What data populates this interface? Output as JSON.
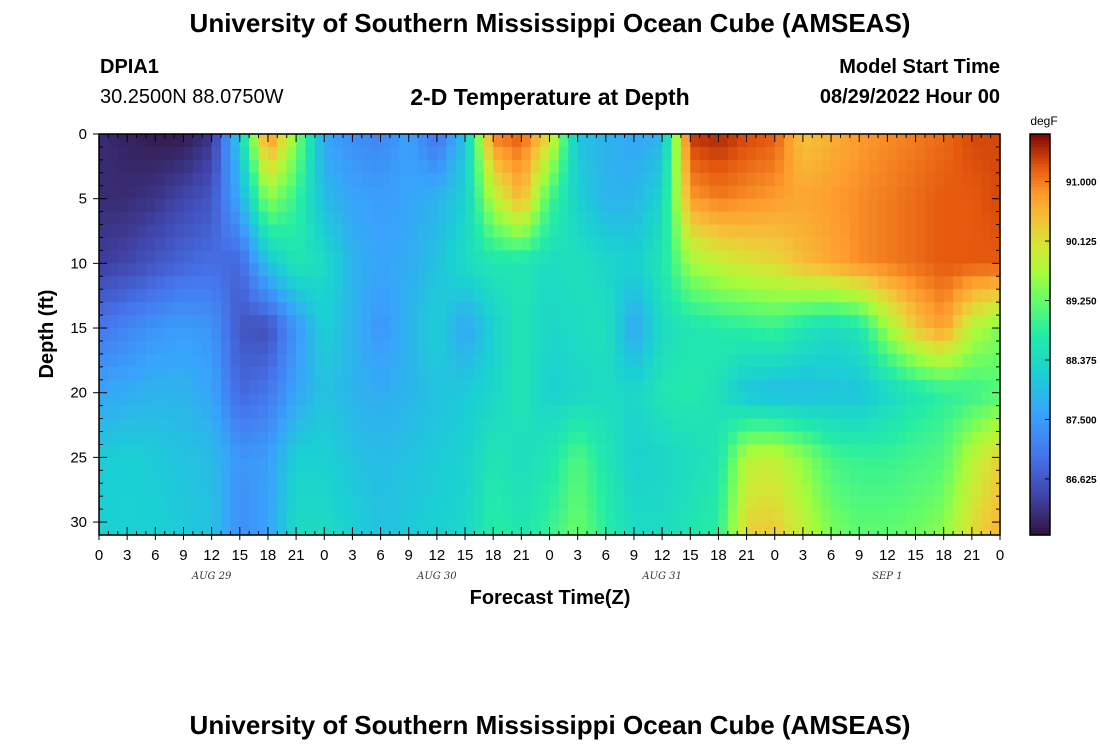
{
  "header": {
    "title": "University of Southern Mississippi Ocean Cube (AMSEAS)",
    "station_id": "DPIA1",
    "coordinates": "30.2500N  88.0750W",
    "plot_title": "2-D Temperature at Depth",
    "model_start_label": "Model Start Time",
    "model_start_value": "08/29/2022 Hour 00"
  },
  "footer": {
    "title": "University of Southern Mississippi Ocean Cube (AMSEAS)"
  },
  "chart_data": {
    "type": "heatmap",
    "title": "2-D Temperature at Depth",
    "xlabel": "Forecast Time(Z)",
    "ylabel": "Depth (ft)",
    "x_hours_range": [
      0,
      96
    ],
    "y_range": [
      0,
      31
    ],
    "x_tick_labels": [
      "0",
      "3",
      "6",
      "9",
      "12",
      "15",
      "18",
      "21",
      "0",
      "3",
      "6",
      "9",
      "12",
      "15",
      "18",
      "21",
      "0",
      "3",
      "6",
      "9",
      "12",
      "15",
      "18",
      "21",
      "0",
      "3",
      "6",
      "9",
      "12",
      "15",
      "18",
      "21",
      "0"
    ],
    "y_tick_values": [
      0,
      5,
      10,
      15,
      20,
      25,
      30
    ],
    "y_tick_labels": [
      "0",
      "5",
      "10",
      "15",
      "20",
      "25",
      "30"
    ],
    "day_labels": [
      {
        "hour": 12,
        "label": "AUG 29"
      },
      {
        "hour": 36,
        "label": "AUG 30"
      },
      {
        "hour": 60,
        "label": "AUG 31"
      },
      {
        "hour": 84,
        "label": "SEP 1"
      }
    ],
    "colorbar": {
      "unit": "degF",
      "min": 85.8,
      "max": 91.7,
      "tick_values": [
        86.625,
        87.5,
        88.375,
        89.25,
        90.125,
        91.0
      ],
      "tick_labels": [
        "86.625",
        "87.500",
        "88.375",
        "89.250",
        "90.125",
        "91.000"
      ]
    },
    "time_hours": [
      0,
      3,
      6,
      9,
      12,
      15,
      18,
      21,
      24,
      27,
      30,
      33,
      36,
      39,
      42,
      45,
      48,
      51,
      54,
      57,
      60,
      63,
      66,
      69,
      72,
      75,
      78,
      81,
      84,
      87,
      90,
      93,
      96
    ],
    "depth_ft": [
      0,
      5,
      10,
      15,
      20,
      25,
      31
    ],
    "temperature_degF": [
      [
        86.1,
        86.0,
        85.9,
        85.9,
        86.2,
        88.2,
        91.0,
        89.5,
        87.6,
        87.3,
        87.2,
        87.6,
        86.9,
        88.0,
        91.0,
        91.2,
        90.2,
        88.0,
        87.8,
        87.6,
        87.8,
        91.4,
        91.5,
        91.3,
        91.2,
        90.4,
        90.6,
        90.8,
        90.9,
        91.0,
        91.1,
        91.3,
        91.3
      ],
      [
        86.1,
        86.1,
        86.2,
        86.4,
        86.6,
        87.7,
        89.5,
        88.9,
        87.9,
        87.6,
        87.5,
        87.6,
        87.8,
        88.2,
        89.8,
        90.6,
        89.0,
        88.2,
        87.8,
        87.8,
        88.3,
        90.8,
        91.0,
        90.9,
        90.8,
        90.7,
        90.8,
        90.9,
        91.0,
        91.1,
        91.2,
        91.2,
        91.3
      ],
      [
        86.3,
        86.4,
        86.6,
        86.8,
        86.9,
        86.8,
        88.0,
        88.6,
        88.4,
        87.8,
        87.6,
        87.7,
        88.0,
        88.4,
        88.6,
        88.6,
        88.4,
        88.5,
        88.3,
        88.2,
        88.6,
        89.6,
        89.9,
        90.1,
        90.2,
        90.5,
        90.7,
        90.9,
        91.0,
        91.1,
        91.2,
        91.2,
        91.2
      ],
      [
        87.0,
        87.2,
        87.4,
        87.5,
        87.4,
        86.6,
        86.5,
        87.4,
        88.2,
        87.8,
        87.4,
        87.8,
        88.2,
        87.6,
        88.2,
        88.6,
        88.3,
        88.4,
        88.5,
        87.6,
        88.4,
        88.6,
        88.7,
        88.8,
        88.9,
        88.6,
        88.4,
        88.6,
        89.6,
        90.4,
        90.8,
        89.8,
        89.4
      ],
      [
        87.6,
        87.7,
        87.8,
        87.8,
        87.6,
        86.8,
        87.0,
        87.6,
        88.0,
        87.8,
        87.7,
        87.8,
        88.0,
        88.1,
        88.3,
        88.6,
        88.2,
        88.3,
        88.4,
        88.3,
        88.6,
        88.7,
        88.5,
        88.0,
        87.9,
        87.9,
        88.0,
        88.0,
        88.3,
        88.6,
        88.8,
        88.9,
        89.1
      ],
      [
        88.1,
        88.2,
        88.1,
        88.0,
        87.9,
        87.4,
        87.5,
        88.2,
        88.2,
        88.0,
        87.9,
        88.0,
        88.1,
        88.2,
        88.6,
        88.4,
        88.6,
        89.1,
        88.6,
        88.2,
        88.3,
        88.4,
        88.6,
        89.8,
        89.9,
        89.5,
        89.0,
        88.9,
        88.9,
        89.0,
        89.1,
        89.8,
        90.3
      ],
      [
        88.2,
        88.2,
        88.2,
        88.1,
        88.0,
        87.3,
        87.6,
        88.4,
        88.4,
        88.2,
        88.0,
        88.1,
        88.2,
        88.3,
        88.8,
        88.6,
        88.9,
        89.3,
        88.8,
        88.4,
        88.4,
        88.6,
        88.8,
        90.3,
        90.4,
        89.9,
        89.4,
        89.2,
        89.2,
        89.3,
        89.5,
        90.2,
        90.6
      ]
    ]
  }
}
